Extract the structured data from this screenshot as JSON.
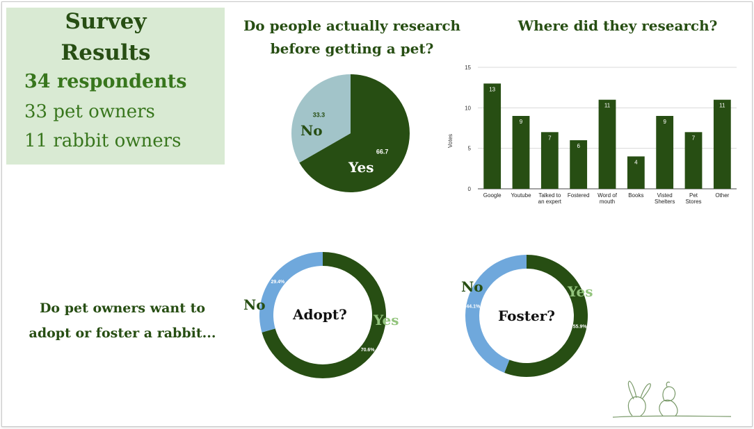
{
  "summary": {
    "title_line1": "Survey",
    "title_line2": "Results",
    "respondents": "34 respondents",
    "pet_owners": "33 pet owners",
    "rabbit_owners": "11 rabbit owners"
  },
  "questions": {
    "research": [
      "Do people actually research",
      "before getting a pet?"
    ],
    "where": "Where did they research?",
    "adopt_foster": [
      "Do pet owners want to",
      "adopt or foster a rabbit..."
    ]
  },
  "labels": {
    "yes": "Yes",
    "no": "No",
    "adopt": "Adopt?",
    "foster": "Foster?"
  },
  "colors": {
    "dark_green": "#274e13",
    "light_blue": "#a2c4c9",
    "blue": "#6fa8dc",
    "light_green": "#93c47d",
    "summary_bg": "#d9ead3"
  },
  "chart_data": [
    {
      "type": "pie",
      "categories": [
        "Yes",
        "No"
      ],
      "values": [
        66.7,
        33.3
      ],
      "data_labels": [
        "66.7",
        "33.3"
      ]
    },
    {
      "type": "bar",
      "categories": [
        "Google",
        "Youtube",
        "Talked to an expert",
        "Fostered",
        "Word of mouth",
        "Books",
        "Visted Shelters",
        "Pet Stores",
        "Other"
      ],
      "values": [
        13,
        9,
        7,
        6,
        11,
        4,
        9,
        7,
        11
      ],
      "ylabel": "Votes",
      "ylim": [
        0,
        15
      ],
      "yticks": [
        0,
        5,
        10,
        15
      ],
      "grid": true
    },
    {
      "type": "pie",
      "variant": "donut",
      "center_label": "Adopt?",
      "categories": [
        "Yes",
        "No"
      ],
      "values": [
        70.6,
        29.4
      ],
      "data_labels": [
        "70.6%",
        "29.4%"
      ]
    },
    {
      "type": "pie",
      "variant": "donut",
      "center_label": "Foster?",
      "categories": [
        "Yes",
        "No"
      ],
      "values": [
        55.9,
        44.1
      ],
      "data_labels": [
        "55.9%",
        "44.1%"
      ]
    }
  ],
  "decoration": {
    "illustration": "rabbit-and-child-sketch"
  }
}
